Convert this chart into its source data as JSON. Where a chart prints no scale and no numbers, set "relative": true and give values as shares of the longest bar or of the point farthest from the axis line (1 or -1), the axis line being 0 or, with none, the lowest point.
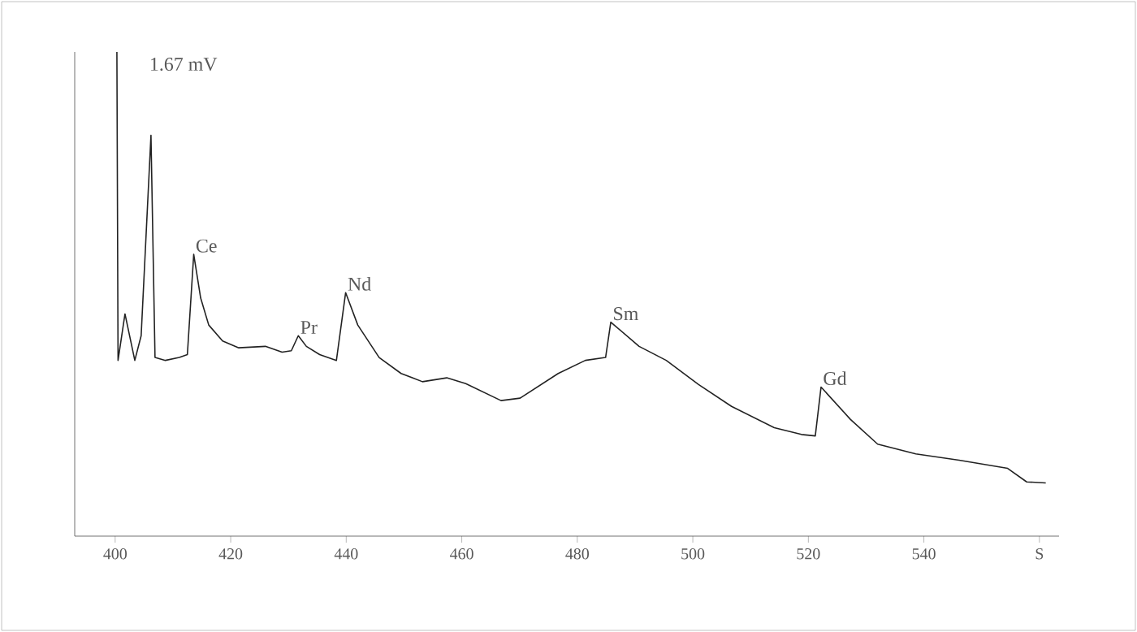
{
  "chart_data": {
    "type": "line",
    "relative": true,
    "color": "#222222",
    "x": [
      400.3,
      400.5,
      401.7,
      403.4,
      404.5,
      406.2,
      406.9,
      408.7,
      411.1,
      412.5,
      413.6,
      414.8,
      416.2,
      418.6,
      421.4,
      426.0,
      428.9,
      430.5,
      431.7,
      433.1,
      435.4,
      438.3,
      439.9,
      442.0,
      445.7,
      449.5,
      453.2,
      457.4,
      460.7,
      466.8,
      470.1,
      476.7,
      481.4,
      484.9,
      485.8,
      490.7,
      495.4,
      501.0,
      506.7,
      514.1,
      518.8,
      521.2,
      522.2,
      527.3,
      532.0,
      538.6,
      546.1,
      554.5,
      557.8,
      561.1
    ],
    "values": [
      1.0,
      0.363,
      0.459,
      0.363,
      0.414,
      0.828,
      0.369,
      0.363,
      0.369,
      0.375,
      0.582,
      0.492,
      0.436,
      0.403,
      0.389,
      0.392,
      0.38,
      0.383,
      0.414,
      0.392,
      0.375,
      0.363,
      0.503,
      0.436,
      0.369,
      0.336,
      0.319,
      0.327,
      0.315,
      0.28,
      0.285,
      0.336,
      0.363,
      0.369,
      0.442,
      0.392,
      0.363,
      0.313,
      0.268,
      0.224,
      0.21,
      0.207,
      0.308,
      0.241,
      0.19,
      0.17,
      0.157,
      0.14,
      0.112,
      0.11
    ],
    "xlim": [
      393,
      563.4
    ],
    "xticks": [
      400,
      420,
      440,
      460,
      480,
      500,
      520,
      540,
      {
        "value": 560,
        "label": "S"
      }
    ],
    "annotations": [
      "1.67 mV",
      {
        "text": "Ce",
        "x": 413.6,
        "y": 0.582
      },
      {
        "text": "Pr",
        "x": 431.7,
        "y": 0.414
      },
      {
        "text": "Nd",
        "x": 439.9,
        "y": 0.503
      },
      {
        "text": "Sm",
        "x": 485.8,
        "y": 0.442
      },
      {
        "text": "Gd",
        "x": 522.2,
        "y": 0.308
      }
    ]
  }
}
